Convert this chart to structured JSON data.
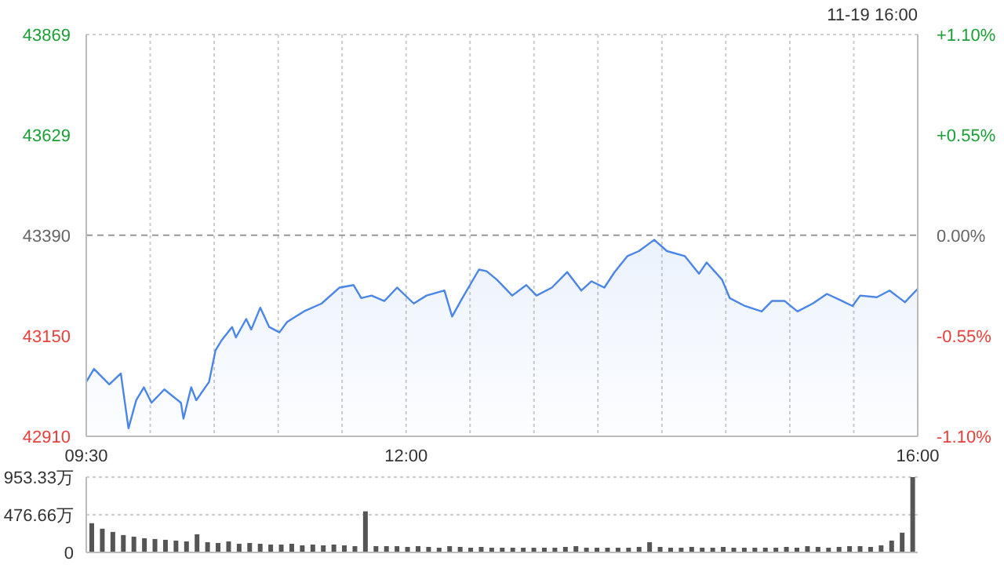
{
  "chart_data": [
    {
      "type": "area",
      "annotations": [
        "11-19 16:00"
      ],
      "series": [
        {
          "color": "#4a86e8",
          "x": [
            9.5,
            9.56,
            9.68,
            9.77,
            9.83,
            9.89,
            9.95,
            10.01,
            10.11,
            10.24,
            10.26,
            10.32,
            10.36,
            10.46,
            10.51,
            10.56,
            10.64,
            10.67,
            10.75,
            10.79,
            10.86,
            10.93,
            11.01,
            11.07,
            11.2,
            11.34,
            11.48,
            11.59,
            11.65,
            11.73,
            11.83,
            11.93,
            12.06,
            12.16,
            12.3,
            12.36,
            12.44,
            12.57,
            12.63,
            12.71,
            12.83,
            12.94,
            13.02,
            13.14,
            13.26,
            13.37,
            13.45,
            13.55,
            13.63,
            13.73,
            13.82,
            13.94,
            14.04,
            14.18,
            14.29,
            14.35,
            14.47,
            14.53,
            14.65,
            14.78,
            14.86,
            14.96,
            15.06,
            15.18,
            15.29,
            15.41,
            15.49,
            15.55,
            15.68,
            15.78,
            15.9,
            16
          ],
          "values": [
            43040,
            43071,
            43034,
            43060,
            42929,
            42996,
            43027,
            42990,
            43022,
            42990,
            42952,
            43027,
            42996,
            43040,
            43115,
            43140,
            43171,
            43146,
            43190,
            43165,
            43217,
            43171,
            43158,
            43183,
            43208,
            43227,
            43265,
            43271,
            43240,
            43246,
            43233,
            43265,
            43227,
            43246,
            43258,
            43196,
            43240,
            43308,
            43304,
            43284,
            43246,
            43271,
            43246,
            43265,
            43302,
            43258,
            43280,
            43265,
            43302,
            43340,
            43352,
            43379,
            43352,
            43340,
            43298,
            43325,
            43284,
            43240,
            43221,
            43208,
            43233,
            43233,
            43208,
            43227,
            43250,
            43233,
            43221,
            43246,
            43242,
            43258,
            43230,
            43262
          ]
        }
      ],
      "xlim": [
        9.5,
        16
      ],
      "xticks": [
        {
          "value": 9.5,
          "label": "09:30"
        },
        {
          "value": 10,
          "label": null
        },
        {
          "value": 10.5,
          "label": null
        },
        {
          "value": 11,
          "label": null
        },
        {
          "value": 11.5,
          "label": null
        },
        {
          "value": 12,
          "label": "12:00"
        },
        {
          "value": 12.5,
          "label": null
        },
        {
          "value": 13,
          "label": null
        },
        {
          "value": 13.5,
          "label": null
        },
        {
          "value": 14,
          "label": null
        },
        {
          "value": 14.5,
          "label": null
        },
        {
          "value": 15,
          "label": null
        },
        {
          "value": 15.5,
          "label": null
        },
        {
          "value": 16,
          "label": "16:00"
        }
      ],
      "ylim": [
        42910,
        43869
      ],
      "yticks": [
        42910,
        43150,
        43390,
        43629,
        43869
      ],
      "y2lim": [
        -1.1,
        1.1
      ],
      "y2ticks": [
        {
          "value": -1.1,
          "label": "-1.10%"
        },
        {
          "value": -0.55,
          "label": "-0.55%"
        },
        {
          "value": 0,
          "label": "0.00%"
        },
        {
          "value": 0.55,
          "label": "+0.55%"
        },
        {
          "value": 1.1,
          "label": "+1.10%"
        }
      ],
      "ref_lines": [
        {
          "axis": "y",
          "value": 43390,
          "color": "#999999",
          "line_style": "dashed"
        }
      ],
      "grid": true,
      "marker": "none",
      "line_style": "solid"
    },
    {
      "type": "bar",
      "categories": [
        null,
        null,
        null,
        null,
        null,
        null,
        null,
        null,
        null,
        null,
        null,
        null,
        null,
        null,
        null,
        null,
        null,
        null,
        null,
        null,
        null,
        null,
        null,
        null,
        null,
        null,
        null,
        null,
        null,
        null,
        null,
        null,
        null,
        null,
        null,
        null,
        null,
        null,
        null,
        null,
        null,
        null,
        null,
        null,
        null,
        null,
        null,
        null,
        null,
        null,
        null,
        null,
        null,
        null,
        null,
        null,
        null,
        null,
        null,
        null,
        null,
        null,
        null,
        null,
        null,
        null,
        null,
        null,
        null,
        null,
        null,
        null,
        null,
        null,
        null,
        null,
        null,
        null,
        null
      ],
      "values": [
        370,
        300,
        260,
        220,
        200,
        180,
        170,
        160,
        150,
        140,
        230,
        130,
        120,
        140,
        110,
        120,
        110,
        100,
        100,
        110,
        90,
        100,
        90,
        100,
        90,
        80,
        520,
        80,
        80,
        80,
        70,
        80,
        70,
        60,
        80,
        70,
        60,
        70,
        60,
        60,
        60,
        60,
        60,
        60,
        60,
        70,
        80,
        60,
        60,
        60,
        60,
        60,
        70,
        130,
        70,
        60,
        60,
        70,
        60,
        60,
        70,
        60,
        60,
        60,
        60,
        60,
        70,
        60,
        80,
        70,
        60,
        70,
        80,
        80,
        70,
        90,
        150,
        250,
        953.33
      ],
      "color": "#555555",
      "ylim": [
        0,
        953.33
      ],
      "yticks": [
        0,
        {
          "value": 476.66,
          "label": "476.66万"
        },
        {
          "value": 953.33,
          "label": "953.33万"
        }
      ],
      "grid": "y",
      "tick_labels": "y"
    }
  ]
}
